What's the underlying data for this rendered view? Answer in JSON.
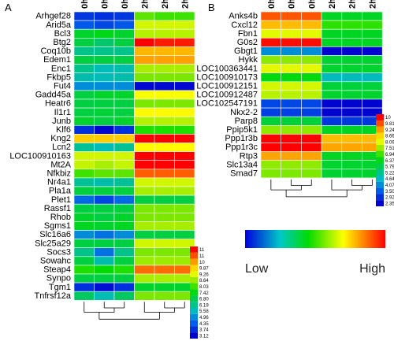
{
  "chart_data": [
    {
      "type": "heatmap",
      "panel_label": "A",
      "columns": [
        "0h",
        "0h",
        "0h",
        "2h",
        "2h",
        "2h"
      ],
      "rows": [
        "Arhgef28",
        "Arid5a",
        "Bcl3",
        "Btg2",
        "Coq10b",
        "Edem1",
        "Enc1",
        "Fkbp5",
        "Fut4",
        "Gadd45a",
        "Heatr6",
        "Il1r1",
        "Junb",
        "Klf6",
        "Kng2",
        "Lcn2",
        "LOC100910163",
        "Mt2A",
        "Nfkbiz",
        "Nr4a1",
        "Pla1a",
        "Plet1",
        "Rassf1",
        "Rhob",
        "Sgms1",
        "Slc16a6",
        "Slc25a29",
        "Socs3",
        "Sowahc",
        "Steap4",
        "Synpo",
        "Tgm1",
        "Tnfrsf12a"
      ],
      "values": [
        [
          3.8,
          3.7,
          3.8,
          7.8,
          7.6,
          7.6
        ],
        [
          4.2,
          4.0,
          4.2,
          8.6,
          8.6,
          8.6
        ],
        [
          6.8,
          7.0,
          6.8,
          8.4,
          8.4,
          8.4
        ],
        [
          6.6,
          6.2,
          6.6,
          11.0,
          10.8,
          10.8
        ],
        [
          5.9,
          5.9,
          5.9,
          9.6,
          9.6,
          9.6
        ],
        [
          6.6,
          6.6,
          6.6,
          9.8,
          9.8,
          9.8
        ],
        [
          5.9,
          5.5,
          5.6,
          8.3,
          8.3,
          8.3
        ],
        [
          5.6,
          5.5,
          5.6,
          8.0,
          8.0,
          8.0
        ],
        [
          4.8,
          4.8,
          4.8,
          3.2,
          3.2,
          3.2
        ],
        [
          6.6,
          6.8,
          6.8,
          8.9,
          8.9,
          8.9
        ],
        [
          6.6,
          6.6,
          6.6,
          8.0,
          8.0,
          8.0
        ],
        [
          6.6,
          6.7,
          6.6,
          9.0,
          9.0,
          9.0
        ],
        [
          6.8,
          6.6,
          6.8,
          8.4,
          8.4,
          8.4
        ],
        [
          3.7,
          3.2,
          3.7,
          7.4,
          7.4,
          7.4
        ],
        [
          9.4,
          9.4,
          9.4,
          11.0,
          11.0,
          11.0
        ],
        [
          5.8,
          5.5,
          5.8,
          9.0,
          9.0,
          9.0
        ],
        [
          8.6,
          8.6,
          8.6,
          11.0,
          11.0,
          11.0
        ],
        [
          8.5,
          8.3,
          8.5,
          11.0,
          11.0,
          11.0
        ],
        [
          7.6,
          7.8,
          7.8,
          10.3,
          10.3,
          10.3
        ],
        [
          5.8,
          5.6,
          5.8,
          8.6,
          8.6,
          8.6
        ],
        [
          6.6,
          6.6,
          6.6,
          8.3,
          8.3,
          8.3
        ],
        [
          4.4,
          4.0,
          4.4,
          6.6,
          6.6,
          6.6
        ],
        [
          6.6,
          6.6,
          6.6,
          8.0,
          8.0,
          8.0
        ],
        [
          6.8,
          6.6,
          6.8,
          8.0,
          8.0,
          8.0
        ],
        [
          6.9,
          6.8,
          6.9,
          8.3,
          8.3,
          8.3
        ],
        [
          4.8,
          4.5,
          4.8,
          6.6,
          6.6,
          6.6
        ],
        [
          6.6,
          6.6,
          6.6,
          8.6,
          8.6,
          8.6
        ],
        [
          5.9,
          4.5,
          5.9,
          8.0,
          8.0,
          8.0
        ],
        [
          6.6,
          5.6,
          6.6,
          8.2,
          8.2,
          8.2
        ],
        [
          7.4,
          7.2,
          7.4,
          10.2,
          10.2,
          10.2
        ],
        [
          6.6,
          6.6,
          6.6,
          8.3,
          8.3,
          8.3
        ],
        [
          3.7,
          3.3,
          3.7,
          6.8,
          6.8,
          6.8
        ],
        [
          6.3,
          5.5,
          6.3,
          8.0,
          8.0,
          8.0
        ]
      ],
      "scale_ticks": [
        "11",
        "11",
        "10",
        "9.87",
        "9.26",
        "8.64",
        "8.03",
        "7.42",
        "6.80",
        "6.19",
        "5.58",
        "4.96",
        "4.35",
        "3.74",
        "3.12"
      ],
      "vmin": 3.12,
      "vmax": 11.0
    },
    {
      "type": "heatmap",
      "panel_label": "B",
      "columns": [
        "0h",
        "0h",
        "0h",
        "2h",
        "2h",
        "2h"
      ],
      "rows": [
        "Anks4b",
        "Cxcl12",
        "Fbn1",
        "G0s2",
        "Gbgt1",
        "Hykk",
        "LOC100363441",
        "LOC100910173",
        "LOC100912151",
        "LOC100912487",
        "LOC102547191",
        "Nkx2-2",
        "Parp8",
        "Ppip5k1",
        "Ppp1r3b",
        "Ppp1r3c",
        "Rtp3",
        "Slc13a4",
        "Smad7"
      ],
      "values": [
        [
          9.4,
          9.4,
          9.4,
          6.0,
          6.0,
          6.0
        ],
        [
          8.6,
          8.6,
          8.6,
          6.6,
          6.6,
          6.6
        ],
        [
          7.8,
          7.8,
          7.8,
          6.0,
          6.0,
          6.0
        ],
        [
          9.9,
          9.9,
          9.9,
          6.0,
          6.0,
          6.0
        ],
        [
          4.0,
          4.0,
          4.0,
          2.4,
          2.4,
          2.4
        ],
        [
          7.2,
          7.2,
          7.2,
          5.9,
          5.9,
          5.9
        ],
        [
          7.8,
          7.8,
          7.8,
          5.9,
          5.9,
          5.9
        ],
        [
          6.2,
          6.2,
          6.2,
          4.6,
          4.6,
          4.6
        ],
        [
          7.7,
          7.7,
          7.7,
          5.8,
          5.8,
          5.8
        ],
        [
          7.5,
          7.5,
          7.5,
          5.9,
          5.9,
          5.9
        ],
        [
          3.2,
          3.2,
          3.2,
          2.4,
          2.4,
          2.4
        ],
        [
          3.1,
          3.1,
          3.1,
          2.4,
          2.4,
          2.4
        ],
        [
          5.8,
          5.8,
          5.8,
          3.0,
          3.0,
          3.0
        ],
        [
          7.2,
          7.2,
          7.2,
          6.0,
          6.0,
          6.0
        ],
        [
          10.0,
          10.0,
          10.0,
          8.6,
          8.6,
          8.6
        ],
        [
          10.0,
          10.0,
          10.0,
          8.8,
          8.8,
          8.8
        ],
        [
          8.8,
          8.8,
          8.8,
          6.0,
          6.0,
          6.0
        ],
        [
          7.2,
          7.2,
          7.2,
          5.9,
          5.9,
          5.9
        ],
        [
          7.1,
          7.1,
          7.1,
          5.9,
          5.9,
          5.9
        ]
      ],
      "scale_ticks": [
        "10",
        "9.81",
        "9.24",
        "8.66",
        "8.09",
        "7.51",
        "6.94",
        "6.37",
        "5.79",
        "5.22",
        "4.64",
        "4.07",
        "3.50",
        "2.92",
        "2.35"
      ],
      "vmin": 2.35,
      "vmax": 10.0
    }
  ],
  "legend": {
    "low_label": "Low",
    "high_label": "High"
  }
}
